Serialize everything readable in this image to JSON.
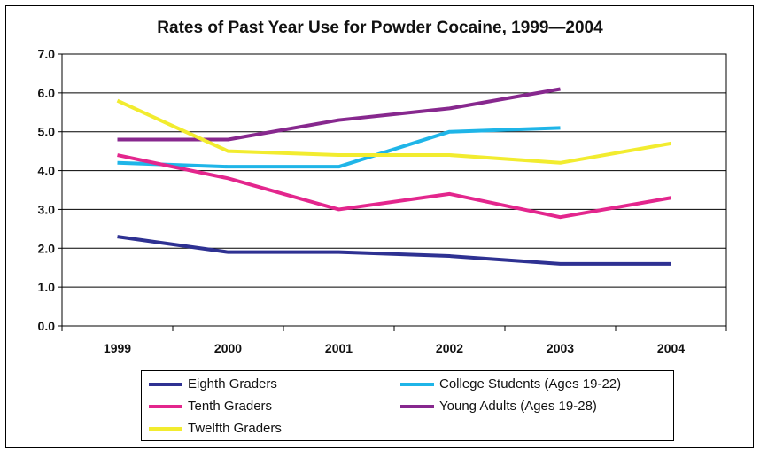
{
  "chart_data": {
    "type": "line",
    "title": "Rates of Past Year Use for Powder Cocaine, 1999—2004",
    "xlabel": "",
    "ylabel": "",
    "categories": [
      "1999",
      "2000",
      "2001",
      "2002",
      "2003",
      "2004"
    ],
    "ylim": [
      0,
      7
    ],
    "yticks": [
      "0.0",
      "1.0",
      "2.0",
      "3.0",
      "4.0",
      "5.0",
      "6.0",
      "7.0"
    ],
    "grid": true,
    "legend_position": "bottom",
    "series": [
      {
        "name": "Eighth Graders",
        "color": "#2e3192",
        "values": [
          2.3,
          1.9,
          1.9,
          1.8,
          1.6,
          1.6
        ]
      },
      {
        "name": "College Students (Ages 19-22)",
        "color": "#1fb5e8",
        "values": [
          4.2,
          4.1,
          4.1,
          5.0,
          5.1,
          null
        ]
      },
      {
        "name": "Tenth Graders",
        "color": "#e3268d",
        "values": [
          4.4,
          3.8,
          3.0,
          3.4,
          2.8,
          3.3
        ]
      },
      {
        "name": "Young Adults (Ages 19-28)",
        "color": "#87288e",
        "values": [
          4.8,
          4.8,
          5.3,
          5.6,
          6.1,
          null
        ]
      },
      {
        "name": "Twelfth Graders",
        "color": "#f2ec2f",
        "values": [
          5.8,
          4.5,
          4.4,
          4.4,
          4.2,
          4.7
        ]
      }
    ]
  }
}
